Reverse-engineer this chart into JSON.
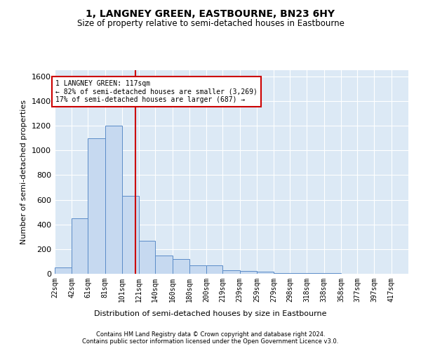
{
  "title1": "1, LANGNEY GREEN, EASTBOURNE, BN23 6HY",
  "title2": "Size of property relative to semi-detached houses in Eastbourne",
  "xlabel": "Distribution of semi-detached houses by size in Eastbourne",
  "ylabel": "Number of semi-detached properties",
  "property_size": 117,
  "property_label": "1 LANGNEY GREEN: 117sqm",
  "pct_smaller": 82,
  "n_smaller": 3269,
  "pct_larger": 17,
  "n_larger": 687,
  "bin_labels": [
    "22sqm",
    "42sqm",
    "61sqm",
    "81sqm",
    "101sqm",
    "121sqm",
    "140sqm",
    "160sqm",
    "180sqm",
    "200sqm",
    "219sqm",
    "239sqm",
    "259sqm",
    "279sqm",
    "298sqm",
    "318sqm",
    "338sqm",
    "358sqm",
    "377sqm",
    "397sqm",
    "417sqm"
  ],
  "bin_left_edges": [
    22,
    42,
    61,
    81,
    101,
    121,
    140,
    160,
    180,
    200,
    219,
    239,
    259,
    279,
    298,
    318,
    338,
    358,
    377,
    397,
    417
  ],
  "bar_heights": [
    50,
    450,
    1100,
    1200,
    630,
    270,
    150,
    120,
    70,
    70,
    30,
    20,
    15,
    5,
    5,
    5,
    3,
    2,
    2,
    1,
    1
  ],
  "bar_color": "#c6d9f0",
  "bar_edgecolor": "#5b8cc8",
  "redline_color": "#cc0000",
  "annotation_box_color": "#cc0000",
  "background_color": "#dce9f5",
  "grid_color": "#ffffff",
  "ylim": [
    0,
    1650
  ],
  "yticks": [
    0,
    200,
    400,
    600,
    800,
    1000,
    1200,
    1400,
    1600
  ],
  "footer1": "Contains HM Land Registry data © Crown copyright and database right 2024.",
  "footer2": "Contains public sector information licensed under the Open Government Licence v3.0."
}
